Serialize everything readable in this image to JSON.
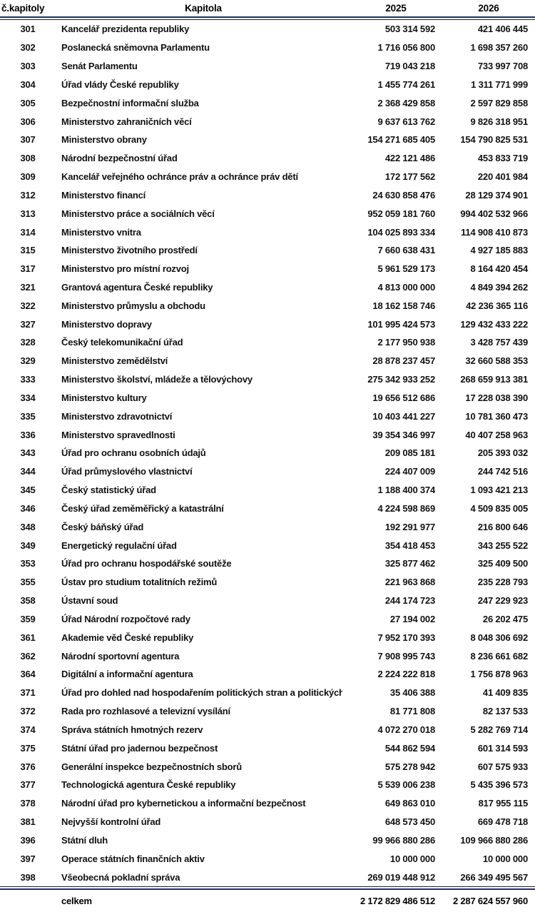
{
  "document": {
    "type": "budget-chapters-table",
    "language": "cs"
  },
  "colors": {
    "rule_navy": "#1f3060",
    "rule_dark": "#1a1a24",
    "text": "#111111",
    "background": "#ffffff"
  },
  "table": {
    "headers": {
      "chapter_number": "č.kapitoly",
      "chapter_name": "Kapitola",
      "year_2025": "2025",
      "year_2026": "2026"
    },
    "rows": [
      {
        "no": "301",
        "name": "Kancelář prezidenta republiky",
        "y2025": "503 314 592",
        "y2026": "421 406 445"
      },
      {
        "no": "302",
        "name": "Poslanecká sněmovna Parlamentu",
        "y2025": "1 716 056 800",
        "y2026": "1 698 357 260"
      },
      {
        "no": "303",
        "name": "Senát Parlamentu",
        "y2025": "719 043 218",
        "y2026": "733 997 708"
      },
      {
        "no": "304",
        "name": "Úřad vlády České republiky",
        "y2025": "1 455 774 261",
        "y2026": "1 311 771 999"
      },
      {
        "no": "305",
        "name": "Bezpečnostní informační služba",
        "y2025": "2 368 429 858",
        "y2026": "2 597 829 858"
      },
      {
        "no": "306",
        "name": "Ministerstvo zahraničních věcí",
        "y2025": "9 637 613 762",
        "y2026": "9 826 318 951"
      },
      {
        "no": "307",
        "name": "Ministerstvo obrany",
        "y2025": "154 271 685 405",
        "y2026": "154 790 825 531"
      },
      {
        "no": "308",
        "name": "Národní bezpečnostní úřad",
        "y2025": "422 121 486",
        "y2026": "453 833 719"
      },
      {
        "no": "309",
        "name": "Kancelář veřejného ochránce práv a ochránce práv dětí",
        "y2025": "172 177 562",
        "y2026": "220 401 984"
      },
      {
        "no": "312",
        "name": "Ministerstvo financí",
        "y2025": "24 630 858 476",
        "y2026": "28 129 374 901"
      },
      {
        "no": "313",
        "name": "Ministerstvo práce a sociálních věcí",
        "y2025": "952 059 181 760",
        "y2026": "994 402 532 966"
      },
      {
        "no": "314",
        "name": "Ministerstvo vnitra",
        "y2025": "104 025 893 334",
        "y2026": "114 908 410 873"
      },
      {
        "no": "315",
        "name": "Ministerstvo životního prostředí",
        "y2025": "7 660 638 431",
        "y2026": "4 927 185 883"
      },
      {
        "no": "317",
        "name": "Ministerstvo pro místní rozvoj",
        "y2025": "5 961 529 173",
        "y2026": "8 164 420 454"
      },
      {
        "no": "321",
        "name": "Grantová agentura České republiky",
        "y2025": "4 813 000 000",
        "y2026": "4 849 394 262"
      },
      {
        "no": "322",
        "name": "Ministerstvo průmyslu a obchodu",
        "y2025": "18 162 158 746",
        "y2026": "42 236 365 116"
      },
      {
        "no": "327",
        "name": "Ministerstvo dopravy",
        "y2025": "101 995 424 573",
        "y2026": "129 432 433 222"
      },
      {
        "no": "328",
        "name": "Český telekomunikační úřad",
        "y2025": "2 177 950 938",
        "y2026": "3 428 757 439"
      },
      {
        "no": "329",
        "name": "Ministerstvo zemědělství",
        "y2025": "28 878 237 457",
        "y2026": "32 660 588 353"
      },
      {
        "no": "333",
        "name": "Ministerstvo školství, mládeže a tělovýchovy",
        "y2025": "275 342 933 252",
        "y2026": "268 659 913 381"
      },
      {
        "no": "334",
        "name": "Ministerstvo kultury",
        "y2025": "19 656 512 686",
        "y2026": "17 228 038 390"
      },
      {
        "no": "335",
        "name": "Ministerstvo zdravotnictví",
        "y2025": "10 403 441 227",
        "y2026": "10 781 360 473"
      },
      {
        "no": "336",
        "name": "Ministerstvo spravedlnosti",
        "y2025": "39 354 346 997",
        "y2026": "40 407 258 963"
      },
      {
        "no": "343",
        "name": "Úřad pro ochranu osobních údajů",
        "y2025": "209 085 181",
        "y2026": "205 393 032"
      },
      {
        "no": "344",
        "name": "Úřad průmyslového vlastnictví",
        "y2025": "224 407 009",
        "y2026": "244 742 516"
      },
      {
        "no": "345",
        "name": "Český statistický úřad",
        "y2025": "1 188 400 374",
        "y2026": "1 093 421 213"
      },
      {
        "no": "346",
        "name": "Český úřad zeměměřický a katastrální",
        "y2025": "4 224 598 869",
        "y2026": "4 509 835 005"
      },
      {
        "no": "348",
        "name": "Český báňský úřad",
        "y2025": "192 291 977",
        "y2026": "216 800 646"
      },
      {
        "no": "349",
        "name": "Energetický regulační úřad",
        "y2025": "354 418 453",
        "y2026": "343 255 522"
      },
      {
        "no": "353",
        "name": "Úřad pro ochranu hospodářské soutěže",
        "y2025": "325 877 462",
        "y2026": "325 409 500"
      },
      {
        "no": "355",
        "name": "Ústav pro studium totalitních režimů",
        "y2025": "221 963 868",
        "y2026": "235 228 793"
      },
      {
        "no": "358",
        "name": "Ústavní soud",
        "y2025": "244 174 723",
        "y2026": "247 229 923"
      },
      {
        "no": "359",
        "name": "Úřad Národní rozpočtové rady",
        "y2025": "27 194 002",
        "y2026": "26 202 475"
      },
      {
        "no": "361",
        "name": "Akademie věd České republiky",
        "y2025": "7 952 170 393",
        "y2026": "8 048 306 692"
      },
      {
        "no": "362",
        "name": "Národní sportovní agentura",
        "y2025": "7 908 995 743",
        "y2026": "8 236 661 682"
      },
      {
        "no": "364",
        "name": "Digitální a informační agentura",
        "y2025": "2 224 222 818",
        "y2026": "1 756 878 963"
      },
      {
        "no": "371",
        "name": "Úřad pro dohled nad hospodařením politických stran a politických hnutí",
        "y2025": "35 406 388",
        "y2026": "41 409 835"
      },
      {
        "no": "372",
        "name": "Rada pro rozhlasové a televizní vysílání",
        "y2025": "81 771 808",
        "y2026": "82 137 533"
      },
      {
        "no": "374",
        "name": "Správa státních hmotných rezerv",
        "y2025": "4 072 270 018",
        "y2026": "5 282 769 714"
      },
      {
        "no": "375",
        "name": "Státní úřad pro jadernou bezpečnost",
        "y2025": "544 862 594",
        "y2026": "601 314 593"
      },
      {
        "no": "376",
        "name": "Generální inspekce bezpečnostních sborů",
        "y2025": "575 278 942",
        "y2026": "607 575 933"
      },
      {
        "no": "377",
        "name": "Technologická agentura České republiky",
        "y2025": "5 539 006 238",
        "y2026": "5 435 396 573"
      },
      {
        "no": "378",
        "name": "Národní úřad pro kybernetickou a informační bezpečnost",
        "y2025": "649 863 010",
        "y2026": "817 955 115"
      },
      {
        "no": "381",
        "name": "Nejvyšší kontrolní úřad",
        "y2025": "648 573 450",
        "y2026": "669 478 718"
      },
      {
        "no": "396",
        "name": "Státní dluh",
        "y2025": "99 966 880 286",
        "y2026": "109 966 880 286"
      },
      {
        "no": "397",
        "name": "Operace státních finančních aktiv",
        "y2025": "10 000 000",
        "y2026": "10 000 000"
      },
      {
        "no": "398",
        "name": "Všeobecná pokladní správa",
        "y2025": "269 019 448 912",
        "y2026": "266 349 495 567"
      }
    ],
    "footer": {
      "label": "celkem",
      "y2025": "2 172 829 486 512",
      "y2026": "2 287 624 557 960"
    }
  }
}
